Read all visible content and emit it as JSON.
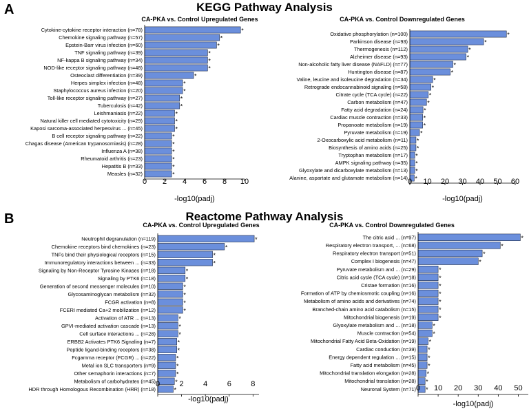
{
  "figure": {
    "sections": [
      {
        "letter": "A",
        "title": "KEGG Pathway Analysis"
      },
      {
        "letter": "B",
        "title": "Reactome Pathway Analysis"
      }
    ]
  },
  "chart_data": [
    {
      "type": "bar",
      "orientation": "horizontal",
      "section": "KEGG Pathway Analysis",
      "title": "CA-PKA vs. Control Upregulated Genes",
      "xlabel": "-log10(padj)",
      "xlim": [
        0,
        10
      ],
      "xticks": [
        0,
        2,
        4,
        6,
        8,
        10
      ],
      "significance_marker": "*",
      "categories": [
        "Cytokine-cytokine receptor interaction (n=78)",
        "Chemokine signaling pathway (n=57)",
        "Epstein-Barr virus infection (n=60)",
        "TNF signaling pathway (n=39)",
        "NF-kappa B signaling pathway (n=34)",
        "NOD-like receptor signaling pathway (n=48)",
        "Osteoclast differentiation (n=39)",
        "Herpes simplex infection (n=48)",
        "Staphylococcus aureus infection (n=20)",
        "Toll-like receptor signaling pathway (n=27)",
        "Tuberculosis (n=42)",
        "Leishmaniasis (n=22)",
        "Natural killer cell mediated cytotoxicity (n=29)",
        "Kaposi sarcoma-associated herpesvirus ... (n=45)",
        "B cell receptor signaling pathway (n=22)",
        "Chagas disease (American trypanosomiasis) (n=28)",
        "Influenza A (n=38)",
        "Rheumatoid arthritis (n=23)",
        "Hepatitis B (n=33)",
        "Measles (n=32)"
      ],
      "values": [
        9.6,
        7.5,
        7.2,
        6.3,
        6.3,
        6.3,
        4.9,
        3.8,
        3.8,
        3.5,
        3.5,
        3.0,
        3.0,
        3.0,
        2.7,
        2.7,
        2.7,
        2.7,
        2.7,
        2.7
      ]
    },
    {
      "type": "bar",
      "orientation": "horizontal",
      "section": "KEGG Pathway Analysis",
      "title": "CA-PKA vs. Control Downregulated Genes",
      "xlabel": "-log10(padj)",
      "xlim": [
        0,
        60
      ],
      "xticks": [
        0,
        10,
        20,
        30,
        40,
        50,
        60
      ],
      "significance_marker": "*",
      "categories": [
        "Oxidative phosphorylation (n=100)",
        "Parkinson disease (n=93)",
        "Thermogenesis (n=112)",
        "Alzheimer disease (n=93)",
        "Non-alcoholic fatty liver disease (NAFLD) (n=77)",
        "Huntington disease (n=87)",
        "Valine, leucine and isoleucine degradation (n=34)",
        "Retrograde endocannabinoid signaling (n=58)",
        "Citrate cycle (TCA cycle) (n=22)",
        "Carbon metabolism (n=47)",
        "Fatty acid degradation (n=24)",
        "Cardiac muscle contraction (n=33)",
        "Propanoate metabolism (n=19)",
        "Pyruvate metabolism (n=19)",
        "2-Oxocarboxylic acid metabolism (n=11)",
        "Biosynthesis of amino acids (n=25)",
        "Tryptophan metabolism (n=17)",
        "AMPK signaling pathway (n=35)",
        "Glyoxylate and dicarboxylate metabolism (n=13)",
        "Alanine, aspartate and glutamate metabolism (n=14)"
      ],
      "values": [
        55,
        42,
        33,
        32,
        24.5,
        23,
        13,
        12,
        10.5,
        9.5,
        7.5,
        7.3,
        7.3,
        5.5,
        3.5,
        3.5,
        2.8,
        2.8,
        2.8,
        2.5
      ]
    },
    {
      "type": "bar",
      "orientation": "horizontal",
      "section": "Reactome Pathway Analysis",
      "title": "CA-PKA vs. Control Upregulated Genes",
      "xlabel": "-log10(padj)",
      "xlim": [
        0,
        8.5
      ],
      "xticks": [
        0,
        2,
        4,
        6,
        8
      ],
      "significance_marker": "*",
      "categories": [
        "Neutrophil degranulation (n=119)",
        "Chemokine receptors bind chemokines (n=23)",
        "TNFs bind their physiological receptors (n=15)",
        "Immunoregulatory interactions between ... (n=33)",
        "Signaling by Non-Receptor Tyrosine Kinases (n=18)",
        "Signaling by PTK6 (n=18)",
        "Generation of second messenger molecules (n=10)",
        "Glycosaminoglycan metabolism (n=32)",
        "FCGR activation (n=8)",
        "FCERI mediated Ca+2 mobilization (n=12)",
        "Activation of ATR ... (n=13)",
        "GPVI-mediated activation cascade (n=13)",
        "Cell surface interactions ... (n=28)",
        "ERBB2 Activates PTK6 Signaling (n=7)",
        "Peptide ligand-binding receptors (n=38)",
        "Fcgamma receptor (FCGR) ... (n=22)",
        "Metal ion SLC transporters (n=9)",
        "Other semaphorin interactions (n=7)",
        "Metabolism of carbohydrates (n=45)",
        "HDR through Homologous Recombination (HRR) (n=18)"
      ],
      "values": [
        8.1,
        5.6,
        4.6,
        4.6,
        2.3,
        2.3,
        2.1,
        2.1,
        2.1,
        2.1,
        1.7,
        1.7,
        1.7,
        1.6,
        1.6,
        1.5,
        1.5,
        1.5,
        1.4,
        1.3
      ]
    },
    {
      "type": "bar",
      "orientation": "horizontal",
      "section": "Reactome Pathway Analysis",
      "title": "CA-PKA vs. Control Downregulated Genes",
      "xlabel": "-log10(padj)",
      "xlim": [
        0,
        55
      ],
      "xticks": [
        0,
        10,
        20,
        30,
        40,
        50
      ],
      "significance_marker": "*",
      "categories": [
        "The citric acid ... (n=97)",
        "Respiratory electron transport, ... (n=68)",
        "Respiratory electron transport (n=51)",
        "Complex I biogenesis (n=47)",
        "Pyruvate metabolism and ... (n=29)",
        "Citric acid cycle (TCA cycle) (n=18)",
        "Cristae formation (n=16)",
        "Formation of ATP by chemiosmotic coupling (n=16)",
        "Metabolism of amino acids and derivatives (n=74)",
        "Branched-chain amino acid catabolism (n=15)",
        "Mitochondrial biogenesis (n=19)",
        "Glyoxylate metabolism and ... (n=18)",
        "Muscle contraction (n=54)",
        "Mitochondrial Fatty Acid Beta-Oxidation (n=19)",
        "Cardiac conduction (n=39)",
        "Energy dependent regulation ... (n=15)",
        "Fatty acid metabolism (n=45)",
        "Mitochondrial translation elongation (n=28)",
        "Mitochondrial translation (n=28)",
        "Neuronal System (n=71)"
      ],
      "values": [
        51,
        41,
        32,
        30,
        10,
        10,
        10,
        10,
        10,
        10,
        10,
        7,
        7,
        5,
        4.5,
        4.5,
        4.5,
        4,
        3.5,
        3.5
      ]
    }
  ]
}
